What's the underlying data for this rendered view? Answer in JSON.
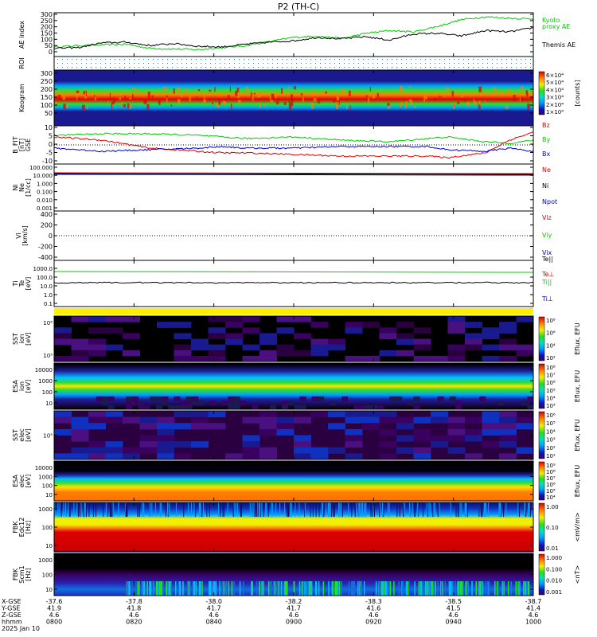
{
  "title": "P2 (TH-C)",
  "colors": {
    "red": "#dd0000",
    "green": "#00cc00",
    "blue": "#0000cc",
    "black": "#000000",
    "yellow": "#ffee00"
  },
  "chart_data": [
    {
      "type": "line",
      "panel": "ae",
      "ylabel": "AE index",
      "yticks": [
        "300",
        "250",
        "200",
        "150",
        "100",
        "50",
        "0"
      ],
      "ylim": [
        -20,
        300
      ],
      "series": [
        {
          "name": "Kyoto\nproxy AE",
          "color": "#00cc00",
          "x": [
            0,
            0.05,
            0.1,
            0.15,
            0.2,
            0.25,
            0.3,
            0.35,
            0.4,
            0.45,
            0.5,
            0.55,
            0.6,
            0.65,
            0.7,
            0.75,
            0.8,
            0.85,
            0.9,
            0.95,
            1.0
          ],
          "values": [
            50,
            60,
            65,
            70,
            40,
            35,
            30,
            45,
            60,
            90,
            120,
            130,
            110,
            150,
            170,
            160,
            200,
            250,
            270,
            260,
            255
          ]
        },
        {
          "name": "Themis AE",
          "color": "#000000",
          "x": [
            0,
            0.05,
            0.1,
            0.15,
            0.2,
            0.25,
            0.3,
            0.35,
            0.4,
            0.45,
            0.5,
            0.55,
            0.6,
            0.65,
            0.7,
            0.75,
            0.8,
            0.85,
            0.9,
            0.95,
            1.0
          ],
          "values": [
            40,
            45,
            80,
            85,
            60,
            75,
            55,
            50,
            70,
            85,
            95,
            120,
            110,
            125,
            100,
            145,
            150,
            130,
            170,
            160,
            190
          ]
        }
      ]
    },
    {
      "type": "heatmap",
      "panel": "roi",
      "ylabel": "ROI"
    },
    {
      "type": "heatmap",
      "panel": "keogram",
      "ylabel": "Keogram",
      "yticks": [
        "300",
        "250",
        "200",
        "150",
        "100",
        "50"
      ],
      "colorbar_ticks": [
        "6×10⁴",
        "5×10⁴",
        "4×10⁴",
        "3×10⁴",
        "2×10⁴",
        "1×10⁴"
      ],
      "colorbar_label": "[counts]"
    },
    {
      "type": "line",
      "panel": "bfield",
      "ylabel": "B_FIT\n[nT]\nGSE",
      "yticks": [
        "10",
        "5",
        "0",
        "-5",
        "-10"
      ],
      "ylim": [
        -12,
        12
      ],
      "series": [
        {
          "name": "Bz",
          "color": "#dd0000",
          "x": [
            0,
            0.1,
            0.2,
            0.3,
            0.35,
            0.4,
            0.5,
            0.6,
            0.7,
            0.78,
            0.82,
            0.9,
            0.95,
            1.0
          ],
          "values": [
            5,
            3,
            -2,
            -4,
            -5,
            -5,
            -6,
            -7,
            -7,
            -7,
            -8,
            -5,
            3,
            8
          ]
        },
        {
          "name": "By",
          "color": "#00cc00",
          "x": [
            0,
            0.1,
            0.2,
            0.3,
            0.35,
            0.4,
            0.5,
            0.6,
            0.7,
            0.78,
            0.82,
            0.9,
            0.95,
            1.0
          ],
          "values": [
            6,
            7,
            7,
            6,
            5,
            4,
            5,
            3,
            2,
            4,
            5,
            2,
            1,
            3
          ]
        },
        {
          "name": "Bx",
          "color": "#0000cc",
          "x": [
            0,
            0.1,
            0.2,
            0.3,
            0.35,
            0.4,
            0.5,
            0.6,
            0.7,
            0.78,
            0.82,
            0.9,
            0.95,
            1.0
          ],
          "values": [
            -2,
            -4,
            -3,
            -2,
            -1,
            -2,
            -2,
            -1,
            -1,
            -1,
            -3,
            -4,
            -2,
            -4
          ]
        }
      ]
    },
    {
      "type": "line",
      "panel": "density",
      "ylabel": "Ni\nNe\n[1/cc]",
      "yticks": [
        "100.000",
        "10.000",
        "1.000",
        "0.100",
        "0.010",
        "0.001"
      ],
      "series": [
        {
          "name": "Ne",
          "color": "#dd0000"
        },
        {
          "name": "Ni",
          "color": "#000000"
        },
        {
          "name": "Npot",
          "color": "#0000cc"
        }
      ]
    },
    {
      "type": "line",
      "panel": "velocity",
      "ylabel": "Vi\n[km/s]",
      "yticks": [
        "400",
        "200",
        "0",
        "-200",
        "-400"
      ],
      "series": [
        {
          "name": "Viz",
          "color": "#dd0000"
        },
        {
          "name": "Viy",
          "color": "#00cc00"
        },
        {
          "name": "Vix",
          "color": "#0000cc"
        }
      ]
    },
    {
      "type": "line",
      "panel": "temperature",
      "ylabel": "Ti\nTe\n[eV]",
      "yticks": [
        "1000.0",
        "100.0",
        "10.0",
        "1.0",
        "0.1"
      ],
      "series": [
        {
          "name": "Te||",
          "color": "#000000"
        },
        {
          "name": "Te⊥",
          "color": "#dd0000"
        },
        {
          "name": "Ti||",
          "color": "#00cc00"
        },
        {
          "name": "Ti⊥",
          "color": "#0000cc"
        }
      ]
    },
    {
      "type": "heatmap",
      "panel": "sst_ion",
      "ylabel": "SST\nion\n[eV]",
      "yticks": [
        "10⁶",
        "10⁵"
      ],
      "colorbar_ticks": [
        "10⁸",
        "10⁶",
        "10⁴",
        "10²"
      ],
      "colorbar_label": "Eflux, EFU"
    },
    {
      "type": "heatmap",
      "panel": "esa_ion",
      "ylabel": "ESA\nion\n[eV]",
      "yticks": [
        "10000",
        "1000",
        "100",
        "10"
      ],
      "colorbar_ticks": [
        "10⁸",
        "10⁷",
        "10⁶",
        "10⁵",
        "10⁴",
        "10³"
      ],
      "colorbar_label": "Eflux, EFU"
    },
    {
      "type": "heatmap",
      "panel": "sst_elec",
      "ylabel": "SST\nelec\n[eV]",
      "yticks": [
        "10⁵"
      ],
      "colorbar_ticks": [
        "10⁶",
        "10⁵",
        "10⁴",
        "10³",
        "10²",
        "10¹"
      ],
      "colorbar_label": "Eflux, EFU"
    },
    {
      "type": "heatmap",
      "panel": "esa_elec",
      "ylabel": "ESA\nelec\n[eV]",
      "yticks": [
        "10000",
        "1000",
        "100",
        "10"
      ],
      "colorbar_ticks": [
        "10⁹",
        "10⁸",
        "10⁷",
        "10⁶",
        "10⁵",
        "10⁴"
      ],
      "colorbar_label": "Eflux, EFU"
    },
    {
      "type": "heatmap",
      "panel": "fbk_e",
      "ylabel": "FBK\nEdc12\n[Hz]",
      "yticks": [
        "1000",
        "100",
        "10"
      ],
      "colorbar_ticks": [
        "1.00",
        "0.10",
        "0.01"
      ],
      "colorbar_label": "<mV/m>"
    },
    {
      "type": "heatmap",
      "panel": "fbk_b",
      "ylabel": "FBK\nScm1\n[Hz]",
      "yticks": [
        "1000",
        "100",
        "10"
      ],
      "colorbar_ticks": [
        "1.000",
        "0.100",
        "0.010",
        "0.001"
      ],
      "colorbar_label": "<nT>"
    }
  ],
  "xaxis": {
    "row_labels": [
      "X-GSE",
      "Y-GSE",
      "Z-GSE",
      "hhmm",
      "2025 Jan 10"
    ],
    "columns": [
      {
        "x": "-37.6",
        "y": "41.9",
        "z": "4.6",
        "t": "0800"
      },
      {
        "x": "-37.8",
        "y": "41.8",
        "z": "4.6",
        "t": "0820"
      },
      {
        "x": "-38.0",
        "y": "41.7",
        "z": "4.6",
        "t": "0840"
      },
      {
        "x": "-38.2",
        "y": "41.7",
        "z": "4.6",
        "t": "0900"
      },
      {
        "x": "-38.3",
        "y": "41.6",
        "z": "4.6",
        "t": "0920"
      },
      {
        "x": "-38.5",
        "y": "41.5",
        "z": "4.6",
        "t": "0940"
      },
      {
        "x": "-38.7",
        "y": "41.4",
        "z": "4.6",
        "t": "1000"
      }
    ]
  }
}
